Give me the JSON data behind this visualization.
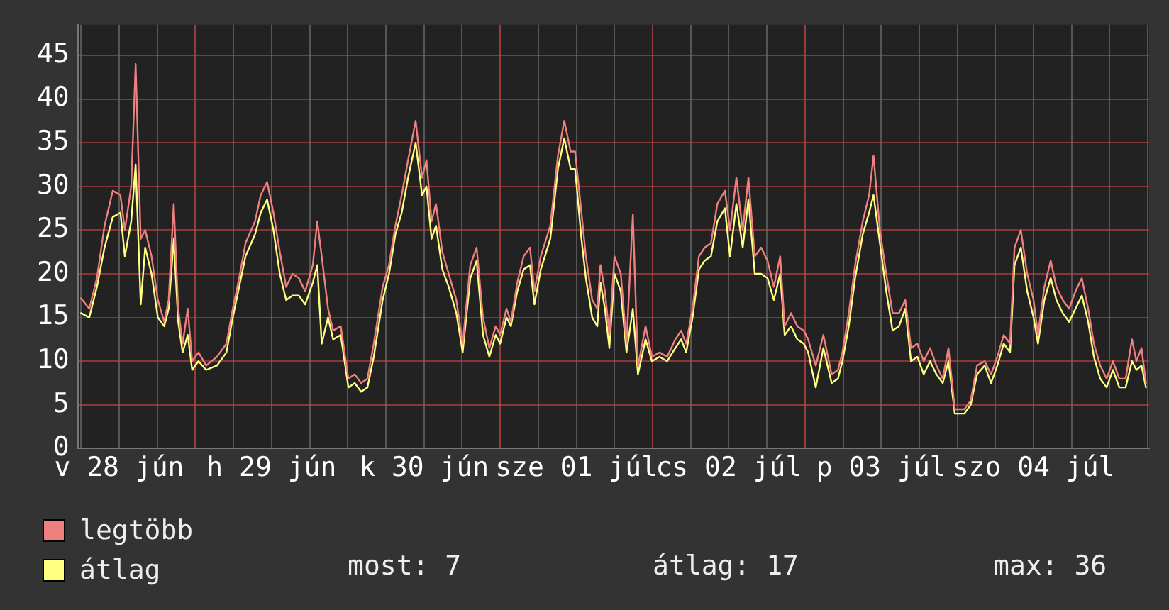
{
  "chart_data": {
    "type": "line",
    "xlim": [
      "--06-28T05:30",
      "--07-05T06:12"
    ],
    "xticks": [
      {
        "value": "--06-28T06:00",
        "label": null
      },
      {
        "value": "--06-28T12:00",
        "label": "v 28 jún"
      },
      {
        "value": "--06-28T18:00",
        "label": null
      },
      {
        "value": "--06-29T00:00",
        "label": null
      },
      {
        "value": "--06-29T06:00",
        "label": null
      },
      {
        "value": "--06-29T12:00",
        "label": "h 29 jún"
      },
      {
        "value": "--06-29T18:00",
        "label": null
      },
      {
        "value": "--06-30T00:00",
        "label": null
      },
      {
        "value": "--06-30T06:00",
        "label": null
      },
      {
        "value": "--06-30T12:00",
        "label": "k 30 jún"
      },
      {
        "value": "--06-30T18:00",
        "label": null
      },
      {
        "value": "--07-01T00:00",
        "label": null
      },
      {
        "value": "--07-01T06:00",
        "label": null
      },
      {
        "value": "--07-01T12:00",
        "label": "sze 01 júl"
      },
      {
        "value": "--07-01T18:00",
        "label": null
      },
      {
        "value": "--07-02T00:00",
        "label": null
      },
      {
        "value": "--07-02T06:00",
        "label": null
      },
      {
        "value": "--07-02T12:00",
        "label": "cs 02 júl"
      },
      {
        "value": "--07-02T18:00",
        "label": null
      },
      {
        "value": "--07-03T00:00",
        "label": null
      },
      {
        "value": "--07-03T06:00",
        "label": null
      },
      {
        "value": "--07-03T12:00",
        "label": "p 03 júl"
      },
      {
        "value": "--07-03T18:00",
        "label": null
      },
      {
        "value": "--07-04T00:00",
        "label": null
      },
      {
        "value": "--07-04T06:00",
        "label": null
      },
      {
        "value": "--07-04T12:00",
        "label": "szo 04 júl"
      },
      {
        "value": "--07-04T18:00",
        "label": null
      },
      {
        "value": "--07-05T00:00",
        "label": null
      },
      {
        "value": "--07-05T06:00",
        "label": null
      }
    ],
    "ylim": [
      0,
      48.5
    ],
    "yticks": [
      0,
      5,
      10,
      15,
      20,
      25,
      30,
      35,
      40,
      45
    ],
    "grid": true,
    "legend": "bottom left",
    "x": [
      "--06-28T06:00",
      "--06-28T07:18",
      "--06-28T08:30",
      "--06-28T09:42",
      "--06-28T11:00",
      "--06-28T12:12",
      "--06-28T12:54",
      "--06-28T13:54",
      "--06-28T14:36",
      "--06-28T15:24",
      "--06-28T16:06",
      "--06-28T17:06",
      "--06-28T18:06",
      "--06-28T19:06",
      "--06-28T19:48",
      "--06-28T20:36",
      "--06-28T21:18",
      "--06-28T22:00",
      "--06-28T22:48",
      "--06-28T23:30",
      "--06-29T00:30",
      "--06-29T01:42",
      "--06-29T03:24",
      "--06-29T04:54",
      "--06-29T05:54",
      "--06-29T06:54",
      "--06-29T07:54",
      "--06-29T09:24",
      "--06-29T10:18",
      "--06-29T11:18",
      "--06-29T12:18",
      "--06-29T13:18",
      "--06-29T14:18",
      "--06-29T15:18",
      "--06-29T16:18",
      "--06-29T17:18",
      "--06-29T18:30",
      "--06-29T19:12",
      "--06-29T19:54",
      "--06-29T20:54",
      "--06-29T21:42",
      "--06-29T22:54",
      "--06-30T00:06",
      "--06-30T01:06",
      "--06-30T02:06",
      "--06-30T03:06",
      "--06-30T04:06",
      "--06-30T05:30",
      "--06-30T06:30",
      "--06-30T07:30",
      "--06-30T08:30",
      "--06-30T09:30",
      "--06-30T10:42",
      "--06-30T11:42",
      "--06-30T12:24",
      "--06-30T13:12",
      "--06-30T13:54",
      "--06-30T14:54",
      "--06-30T15:54",
      "--06-30T17:06",
      "--06-30T18:06",
      "--06-30T19:18",
      "--06-30T20:18",
      "--06-30T21:18",
      "--06-30T22:18",
      "--06-30T23:18",
      "--07-01T00:00",
      "--07-01T01:00",
      "--07-01T01:42",
      "--07-01T02:42",
      "--07-01T03:42",
      "--07-01T04:42",
      "--07-01T05:24",
      "--07-01T06:24",
      "--07-01T07:54",
      "--07-01T09:06",
      "--07-01T10:06",
      "--07-01T11:06",
      "--07-01T11:48",
      "--07-01T12:48",
      "--07-01T13:30",
      "--07-01T14:30",
      "--07-01T15:18",
      "--07-01T15:48",
      "--07-01T16:30",
      "--07-01T17:12",
      "--07-01T18:00",
      "--07-01T19:00",
      "--07-01T19:54",
      "--07-01T20:54",
      "--07-01T21:42",
      "--07-01T22:54",
      "--07-01T23:54",
      "--07-02T01:06",
      "--07-02T02:18",
      "--07-02T03:36",
      "--07-02T04:30",
      "--07-02T05:18",
      "--07-02T06:18",
      "--07-02T07:18",
      "--07-02T08:12",
      "--07-02T09:12",
      "--07-02T10:12",
      "--07-02T11:24",
      "--07-02T12:12",
      "--07-02T13:12",
      "--07-02T14:12",
      "--07-02T15:06",
      "--07-02T16:06",
      "--07-02T17:06",
      "--07-02T18:06",
      "--07-02T19:06",
      "--07-02T20:06",
      "--07-02T20:48",
      "--07-02T21:48",
      "--07-02T22:48",
      "--07-02T23:48",
      "--07-03T00:30",
      "--07-03T01:42",
      "--07-03T02:54",
      "--07-03T04:12",
      "--07-03T05:12",
      "--07-03T05:54",
      "--07-03T06:54",
      "--07-03T07:54",
      "--07-03T09:06",
      "--07-03T10:06",
      "--07-03T10:48",
      "--07-03T11:48",
      "--07-03T12:48",
      "--07-03T13:48",
      "--07-03T14:48",
      "--07-03T15:48",
      "--07-03T16:42",
      "--07-03T17:42",
      "--07-03T18:42",
      "--07-03T19:42",
      "--07-03T20:42",
      "--07-03T21:42",
      "--07-03T22:36",
      "--07-03T23:36",
      "--07-04T01:06",
      "--07-04T02:06",
      "--07-04T03:06",
      "--07-04T04:18",
      "--07-04T05:18",
      "--07-04T06:18",
      "--07-04T07:18",
      "--07-04T08:18",
      "--07-04T09:00",
      "--07-04T10:00",
      "--07-04T11:00",
      "--07-04T12:00",
      "--07-04T12:42",
      "--07-04T13:42",
      "--07-04T14:42",
      "--07-04T15:36",
      "--07-04T16:36",
      "--07-04T17:36",
      "--07-04T18:36",
      "--07-04T19:36",
      "--07-04T20:36",
      "--07-04T21:30",
      "--07-04T22:30",
      "--07-04T23:30",
      "--07-05T00:30",
      "--07-05T01:30",
      "--07-05T02:30",
      "--07-05T03:30",
      "--07-05T04:12",
      "--07-05T05:00",
      "--07-05T05:42"
    ],
    "series": [
      {
        "name": "legtöbb",
        "color": "#f08080",
        "values": [
          17.2,
          16,
          19.5,
          25.5,
          29.5,
          29,
          25,
          30,
          44,
          24,
          25,
          22,
          17,
          14.5,
          17,
          28,
          16,
          12,
          16,
          10,
          11,
          9.5,
          10.5,
          12,
          16,
          19.5,
          23.5,
          26,
          29,
          30.5,
          27,
          22.5,
          18.5,
          20,
          19.5,
          18,
          21,
          26,
          22,
          16,
          13.5,
          14,
          8,
          8.5,
          7.5,
          8,
          12,
          18.5,
          21,
          25.5,
          29,
          33,
          37.5,
          31,
          33,
          26,
          28,
          22.5,
          20,
          17,
          12,
          21,
          23,
          15,
          11.5,
          14,
          13,
          16,
          14.5,
          19,
          22,
          23,
          18,
          22,
          25.5,
          33.5,
          37.5,
          34,
          34,
          27,
          22,
          17,
          16,
          21,
          18,
          13,
          22,
          20,
          12,
          26.8,
          9.4,
          14,
          10.5,
          11,
          10.5,
          12.5,
          13.5,
          12,
          16,
          22,
          23,
          23.5,
          28,
          29.5,
          25,
          31,
          25,
          31,
          22,
          23,
          21.5,
          18.5,
          22,
          14,
          15.5,
          14,
          13.5,
          12.5,
          9.5,
          13,
          8.5,
          9,
          11,
          15.5,
          21,
          26,
          29,
          33.5,
          25,
          20,
          15.5,
          15.5,
          17,
          11.5,
          12,
          10,
          11.5,
          9.5,
          8,
          11.5,
          4.5,
          4.5,
          5.5,
          9.5,
          10,
          8.5,
          10.5,
          13,
          12,
          23,
          25,
          20,
          17,
          13,
          18.5,
          21.5,
          18.5,
          17,
          16,
          18,
          19.5,
          16,
          12,
          9.5,
          8,
          10,
          8,
          8,
          12.5,
          10,
          11.5,
          7.5
        ]
      },
      {
        "name": "átlag",
        "color": "#ffff80",
        "values": [
          15.5,
          15,
          18.5,
          23,
          26.5,
          27,
          22,
          26,
          32.5,
          16.5,
          23,
          20,
          15,
          14,
          16,
          24,
          14.5,
          11,
          13,
          9,
          10,
          9,
          9.5,
          11,
          15,
          18.5,
          22,
          24.5,
          27,
          28.5,
          25,
          20,
          17,
          17.5,
          17.5,
          16.5,
          19,
          21,
          12,
          15,
          12.5,
          13,
          7,
          7.5,
          6.5,
          7,
          10.5,
          17,
          20,
          24.5,
          27,
          31,
          35,
          29,
          30,
          24,
          25.5,
          20.5,
          18.5,
          15.5,
          11,
          19.5,
          21.5,
          13,
          10.5,
          13,
          12,
          15,
          14,
          18,
          20.5,
          21,
          16.5,
          20.5,
          24,
          32,
          35.5,
          32,
          32,
          24,
          19.5,
          15,
          14,
          19,
          16,
          11.5,
          20,
          18,
          11,
          16,
          8.5,
          12.5,
          10,
          10.5,
          10,
          11.5,
          12.5,
          11,
          15,
          20.5,
          21.5,
          22,
          26,
          27.5,
          22,
          28,
          23,
          28.5,
          20,
          20,
          19.5,
          17,
          20,
          13,
          14,
          12.5,
          12,
          11,
          7,
          11.5,
          7.5,
          8,
          10,
          14,
          19.5,
          24.5,
          27,
          29,
          23.5,
          18,
          13.5,
          14,
          16,
          10,
          10.5,
          8.5,
          10,
          8.5,
          7.5,
          10,
          4,
          4,
          5,
          8.5,
          9.5,
          7.5,
          9.5,
          12,
          11,
          21,
          23,
          18,
          15,
          12,
          17,
          19.5,
          17,
          15.5,
          14.5,
          16,
          17.5,
          14.5,
          10.5,
          8,
          7,
          9,
          7,
          7,
          10,
          9,
          9.5,
          7
        ]
      }
    ],
    "annotations": [
      "most: 7",
      "átlag: 17",
      "max: 36"
    ]
  }
}
